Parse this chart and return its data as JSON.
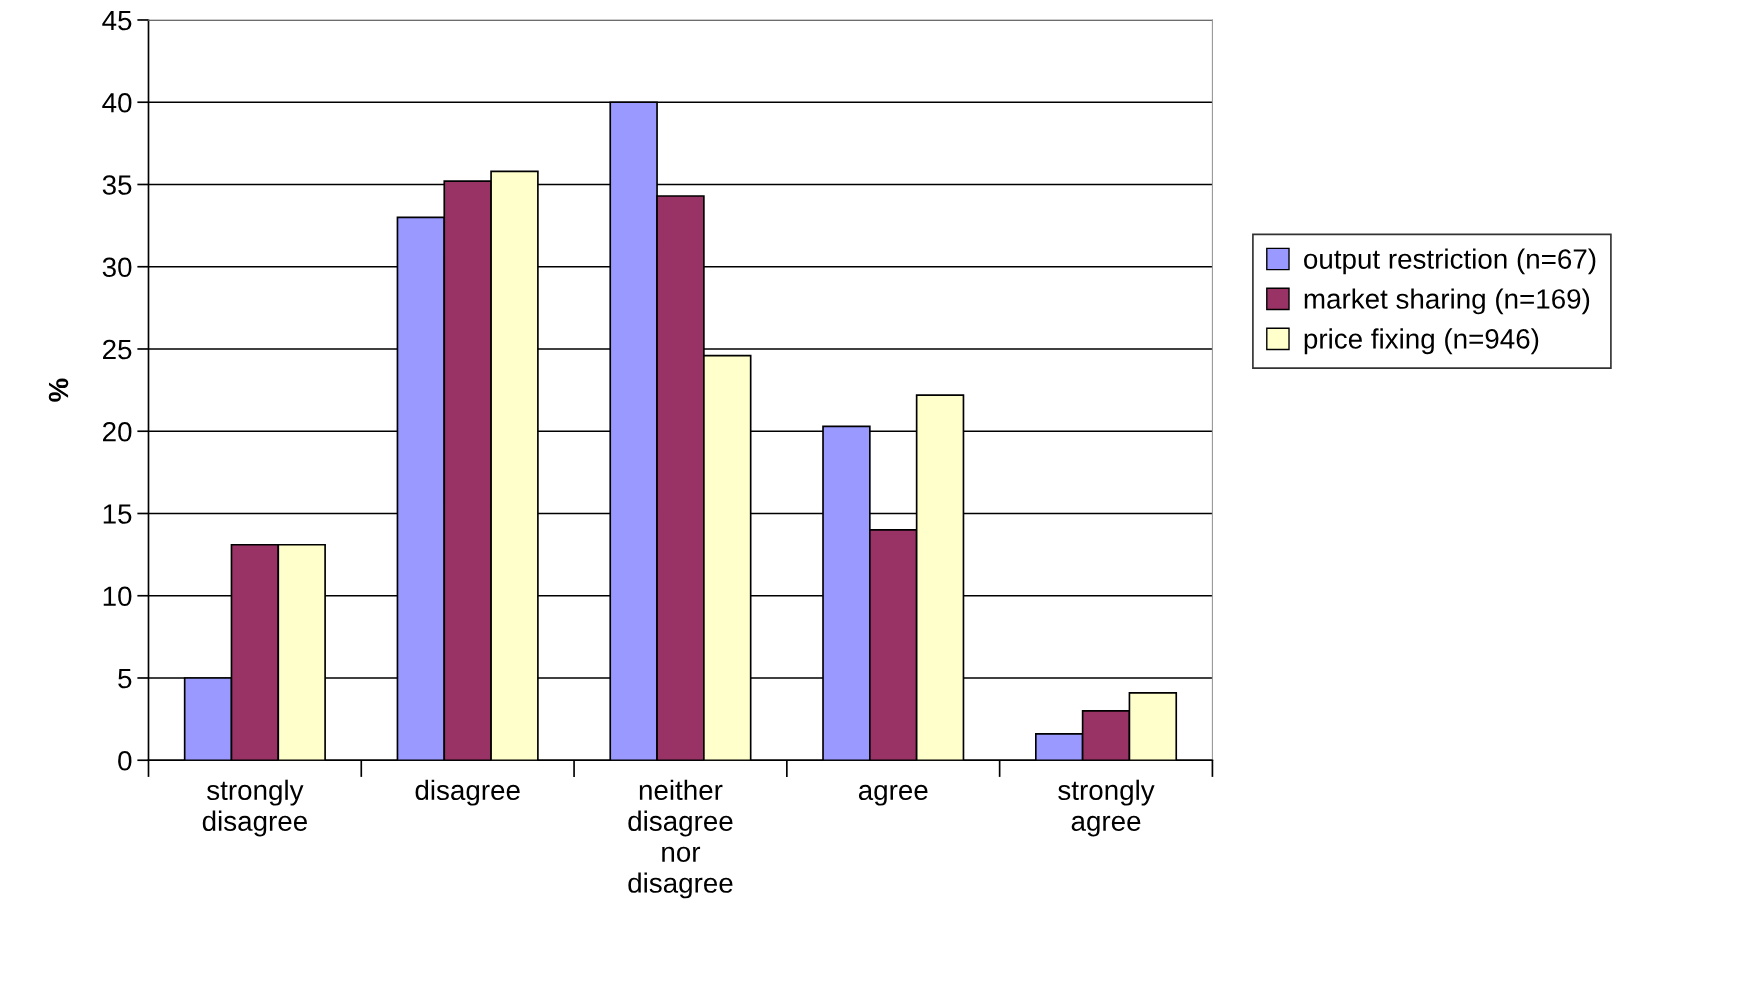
{
  "chart_data": {
    "type": "bar",
    "ylabel": "%",
    "categories": [
      "strongly\ndisagree",
      "disagree",
      "neither\ndisagree\nnor\ndisagree",
      "agree",
      "strongly\nagree"
    ],
    "series": [
      {
        "name": "output restriction (n=67)",
        "color": "#9999ff",
        "values": [
          5.0,
          33.0,
          40.0,
          20.3,
          1.6
        ]
      },
      {
        "name": "market sharing (n=169)",
        "color": "#993366",
        "values": [
          13.1,
          35.2,
          34.3,
          14.0,
          3.0
        ]
      },
      {
        "name": "price fixing (n=946)",
        "color": "#ffffcc",
        "values": [
          13.1,
          35.8,
          24.6,
          22.2,
          4.1
        ]
      }
    ],
    "ylim": [
      0,
      45
    ],
    "yticks": [
      0,
      5,
      10,
      15,
      20,
      25,
      30,
      35,
      40,
      45
    ],
    "grid": "y",
    "legend": "right"
  }
}
